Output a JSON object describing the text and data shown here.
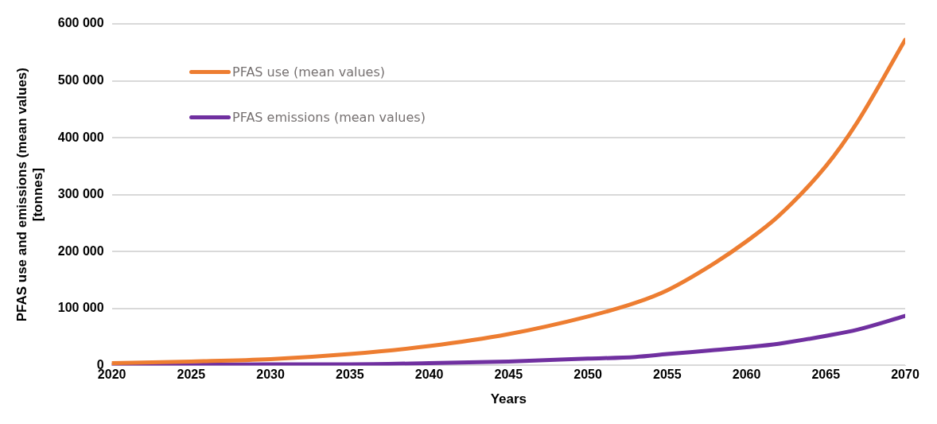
{
  "chart_data": {
    "type": "line",
    "xlabel": "Years",
    "ylabel": "PFAS use and emissions (mean values) [tonnes]",
    "xlim": [
      2020,
      2070
    ],
    "xticks": [
      2020,
      2025,
      2030,
      2035,
      2040,
      2045,
      2050,
      2055,
      2060,
      2065,
      2070
    ],
    "ylim": [
      0,
      600000
    ],
    "yticks": [
      {
        "value": 0,
        "label": "0"
      },
      {
        "value": 100000,
        "label": "100 000"
      },
      {
        "value": 200000,
        "label": "200 000"
      },
      {
        "value": 300000,
        "label": "300 000"
      },
      {
        "value": 400000,
        "label": "400 000"
      },
      {
        "value": 500000,
        "label": "500 000"
      },
      {
        "value": 600000,
        "label": "600 000"
      }
    ],
    "grid": "y",
    "legend": "top left",
    "marker": "none",
    "line_style": "solid",
    "x": [
      2020,
      2025,
      2030,
      2035,
      2040,
      2045,
      2050,
      2053,
      2055,
      2058,
      2060,
      2062,
      2065,
      2067,
      2070
    ],
    "series": [
      {
        "name": "PFAS use (mean values)",
        "color": "#ed7d31",
        "values": [
          4000,
          7000,
          11000,
          20000,
          34000,
          55000,
          86000,
          110000,
          132000,
          180000,
          218000,
          262000,
          350000,
          428000,
          572000
        ]
      },
      {
        "name": "PFAS emissions (mean values)",
        "color": "#7030a0",
        "values": [
          1000,
          1000,
          2000,
          2000,
          4000,
          7000,
          12000,
          15000,
          20000,
          27000,
          32000,
          38000,
          52000,
          63000,
          87000
        ]
      }
    ]
  }
}
